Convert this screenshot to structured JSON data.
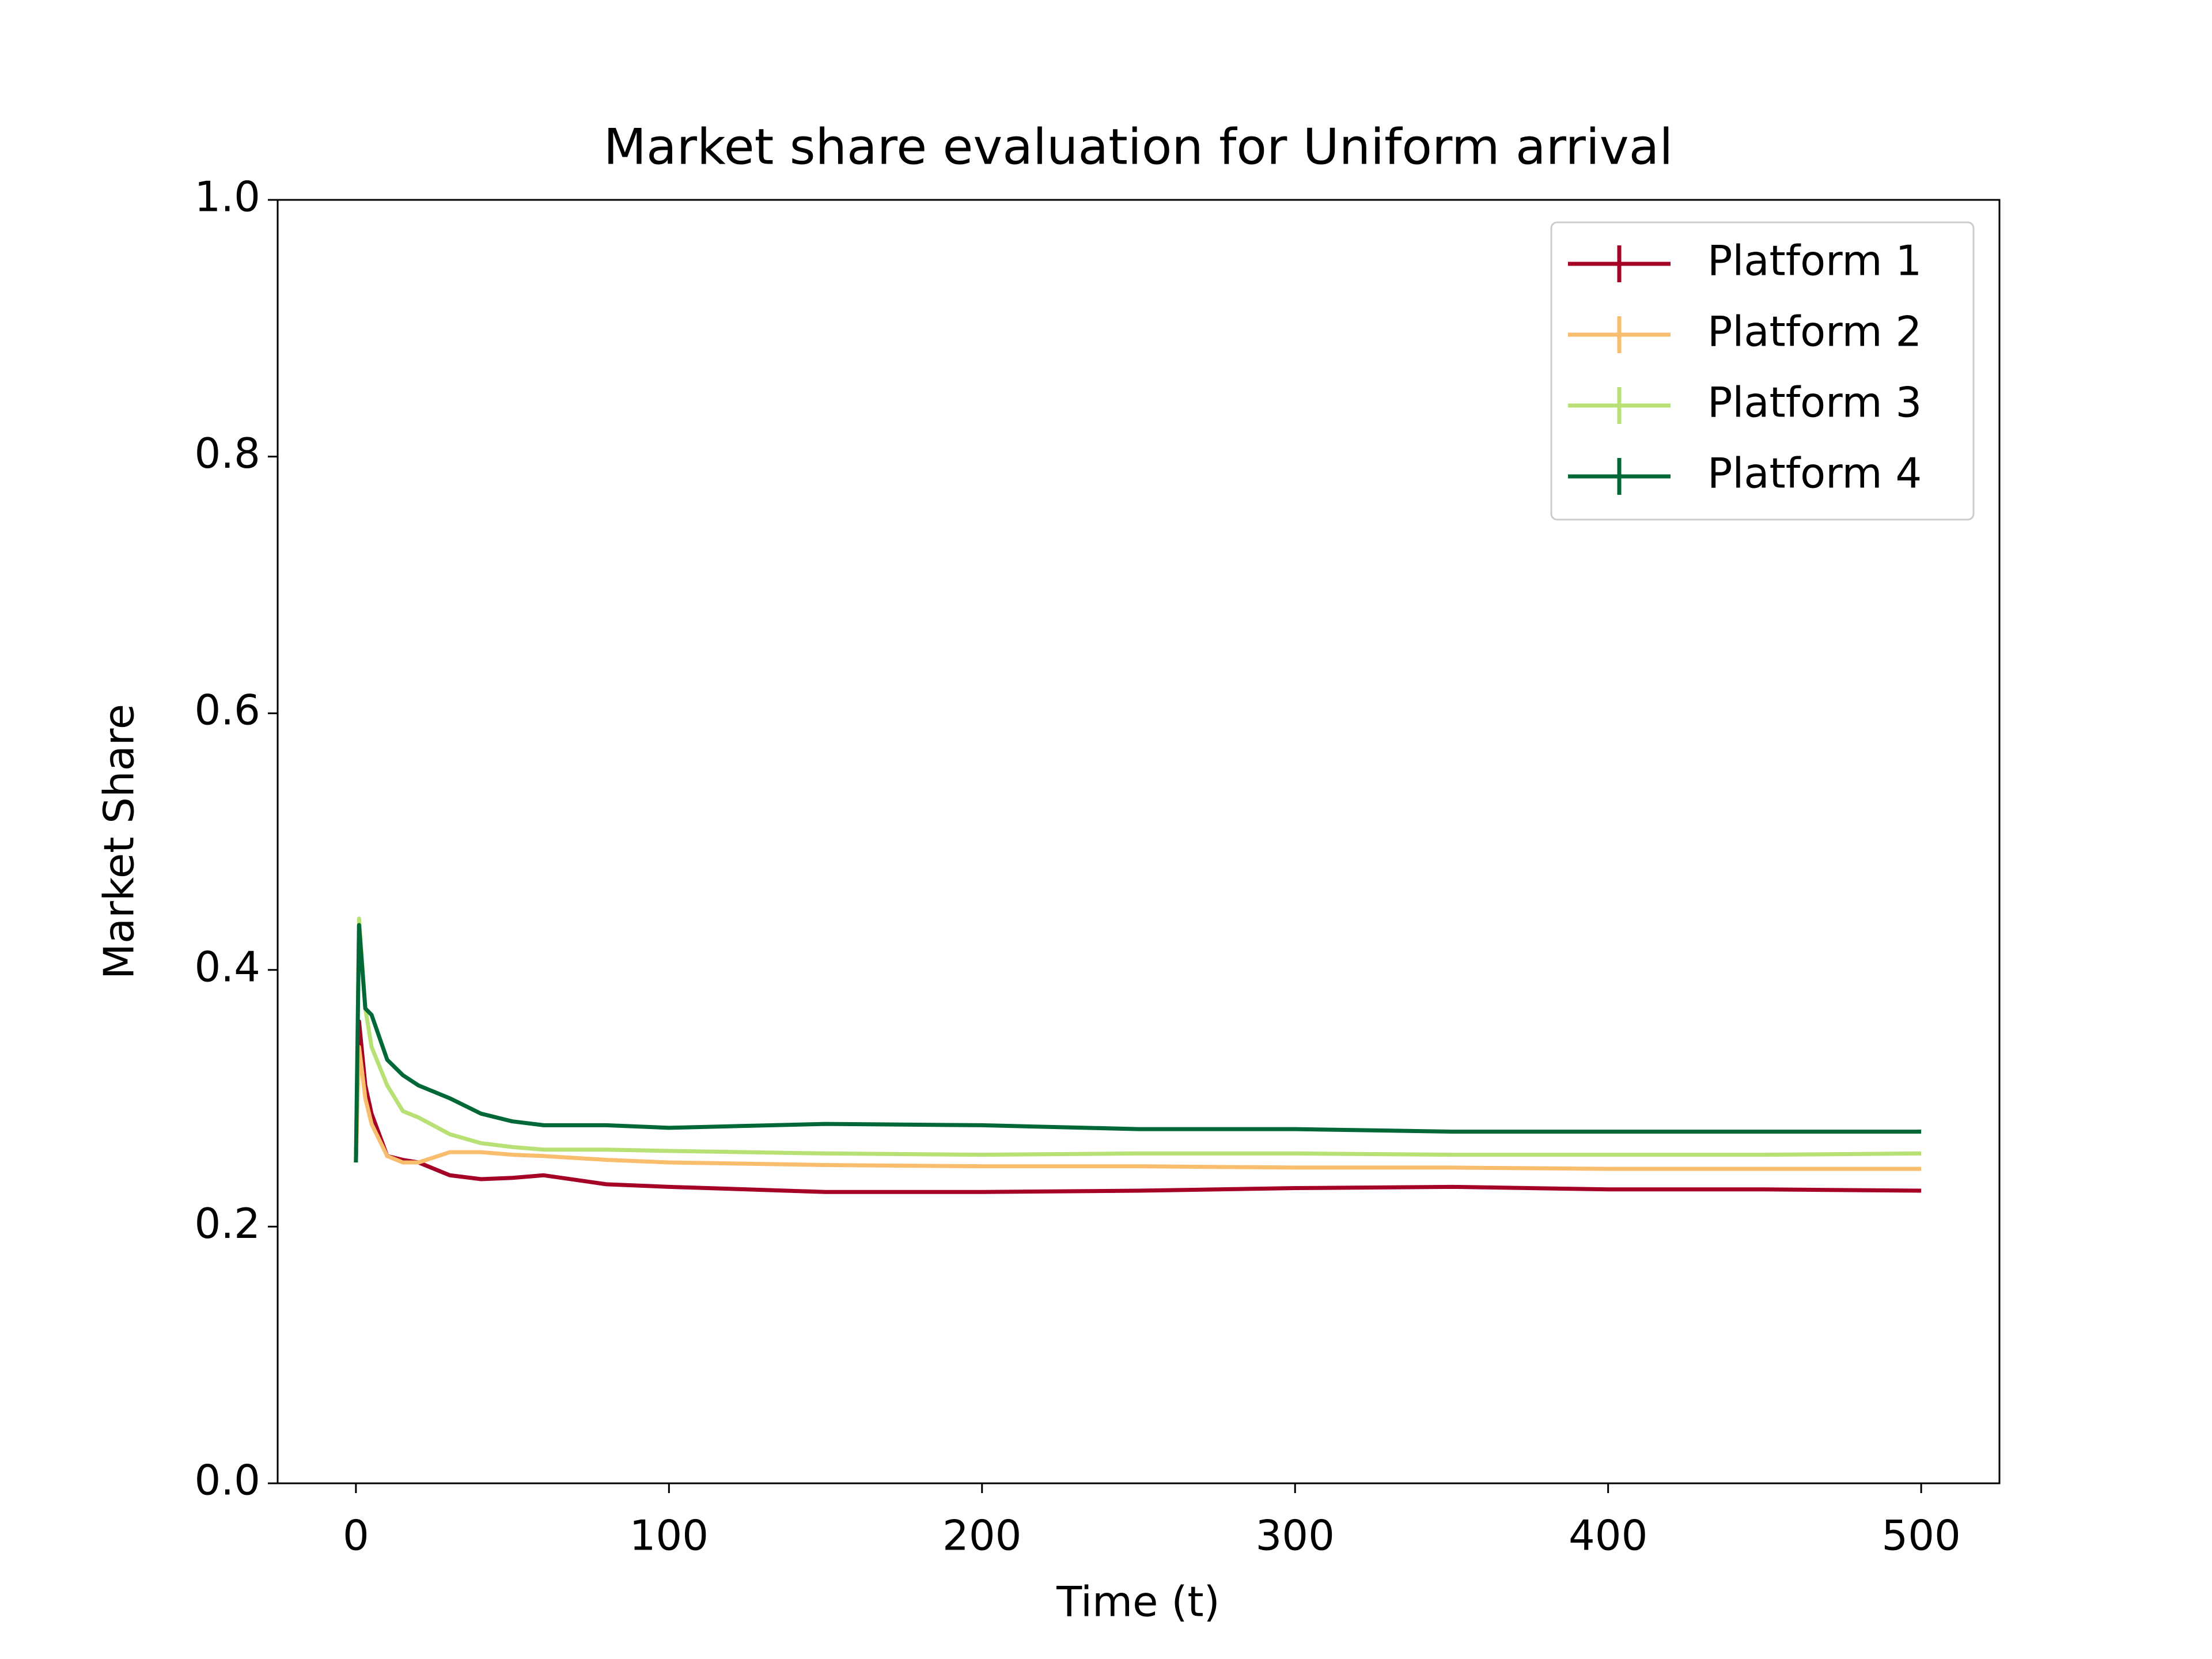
{
  "chart_data": {
    "type": "line",
    "title": "Market share evaluation for Uniform arrival",
    "x_label": "Time (t)",
    "y_label": "Market Share",
    "x": [
      0,
      1,
      3,
      5,
      10,
      15,
      20,
      30,
      40,
      50,
      60,
      80,
      100,
      150,
      200,
      250,
      300,
      350,
      400,
      450,
      500
    ],
    "series": [
      {
        "name": "Platform 1",
        "color": "#a50026",
        "values": [
          0.25,
          0.36,
          0.31,
          0.288,
          0.255,
          0.252,
          0.25,
          0.24,
          0.237,
          0.238,
          0.24,
          0.233,
          0.231,
          0.227,
          0.227,
          0.228,
          0.23,
          0.231,
          0.229,
          0.229,
          0.228
        ]
      },
      {
        "name": "Platform 2",
        "color": "#f9bd6e",
        "values": [
          0.25,
          0.34,
          0.3,
          0.28,
          0.255,
          0.25,
          0.25,
          0.258,
          0.258,
          0.256,
          0.255,
          0.252,
          0.25,
          0.248,
          0.247,
          0.247,
          0.246,
          0.246,
          0.245,
          0.245,
          0.245
        ]
      },
      {
        "name": "Platform 3",
        "color": "#b7e075",
        "values": [
          0.25,
          0.44,
          0.37,
          0.34,
          0.31,
          0.29,
          0.285,
          0.272,
          0.265,
          0.262,
          0.26,
          0.26,
          0.259,
          0.257,
          0.256,
          0.257,
          0.257,
          0.256,
          0.256,
          0.256,
          0.257
        ]
      },
      {
        "name": "Platform 4",
        "color": "#006837",
        "values": [
          0.25,
          0.435,
          0.37,
          0.365,
          0.33,
          0.318,
          0.31,
          0.3,
          0.288,
          0.282,
          0.279,
          0.279,
          0.277,
          0.28,
          0.279,
          0.276,
          0.276,
          0.274,
          0.274,
          0.274,
          0.274
        ]
      }
    ],
    "xlim": [
      -25,
      525
    ],
    "xticks": [
      0,
      100,
      200,
      300,
      400,
      500
    ],
    "ylim": [
      0,
      1
    ],
    "yticks": [
      {
        "value": 0,
        "label": "0.0"
      },
      0.2,
      0.4,
      0.6,
      0.8,
      {
        "value": 1,
        "label": "1.0"
      }
    ],
    "legend": "upper right"
  }
}
